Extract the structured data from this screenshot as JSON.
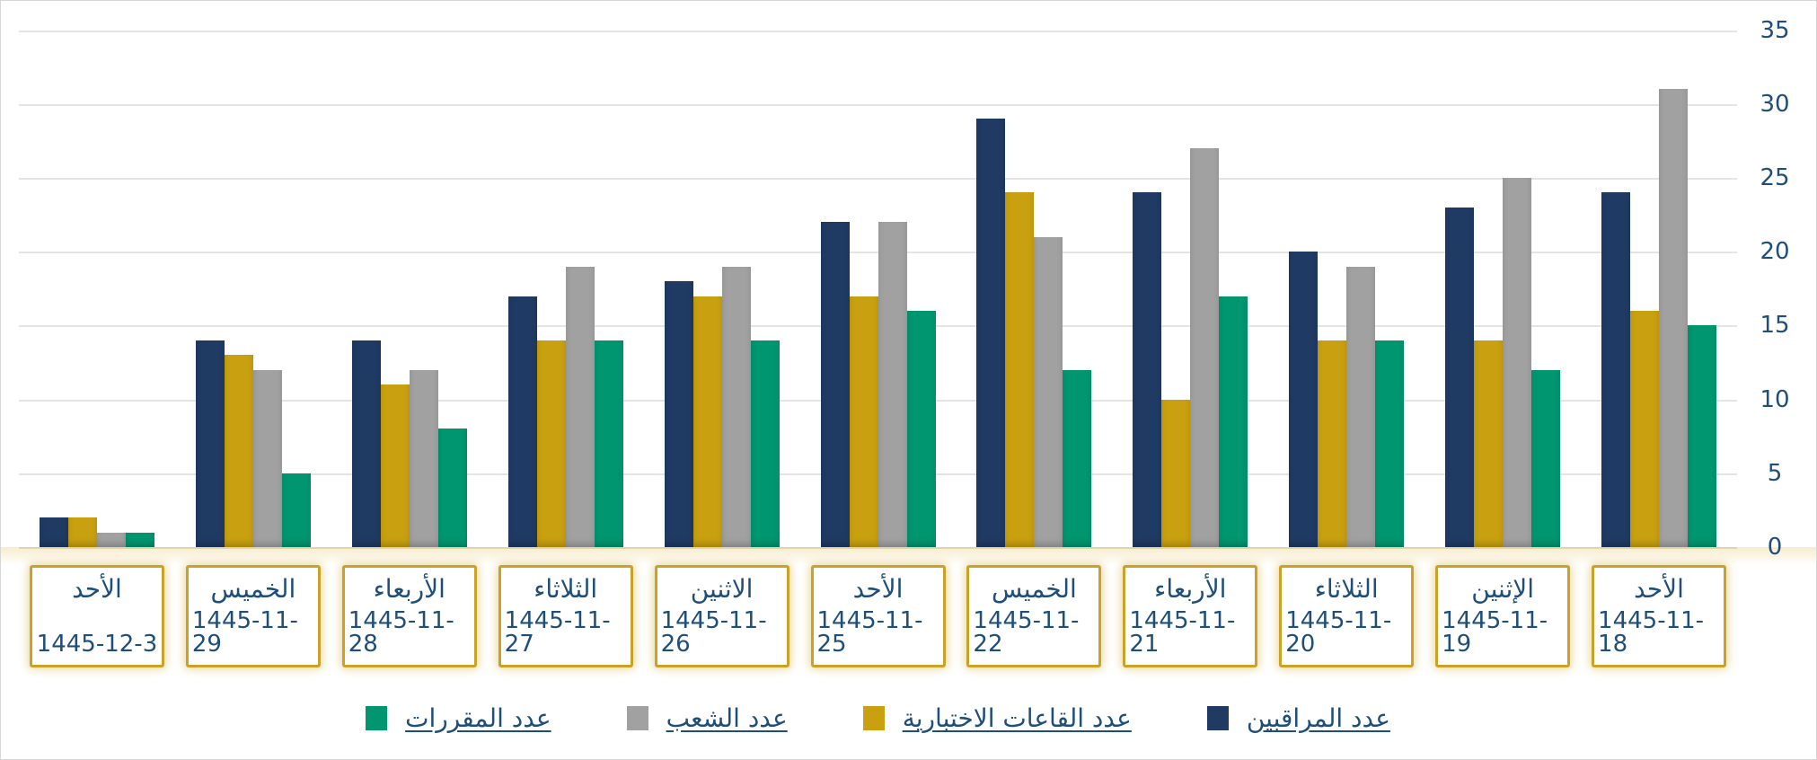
{
  "chart_data": {
    "type": "bar",
    "layout_direction": "rtl",
    "title": "",
    "grid": true,
    "y_axis": {
      "side": "right",
      "min": 0,
      "max": 35,
      "step": 5,
      "ticks": [
        0,
        5,
        10,
        15,
        20,
        25,
        30,
        35
      ],
      "tick_color": "#1f4e79"
    },
    "categories": [
      {
        "day": "الأحد",
        "date": "1445-12-3"
      },
      {
        "day": "الخميس",
        "date": "1445-11-29"
      },
      {
        "day": "الأربعاء",
        "date": "1445-11-28"
      },
      {
        "day": "الثلاثاء",
        "date": "1445-11-27"
      },
      {
        "day": "الاثنين",
        "date": "1445-11-26"
      },
      {
        "day": "الأحد",
        "date": "1445-11-25"
      },
      {
        "day": "الخميس",
        "date": "1445-11-22"
      },
      {
        "day": "الأربعاء",
        "date": "1445-11-21"
      },
      {
        "day": "الثلاثاء",
        "date": "1445-11-20"
      },
      {
        "day": "الإثنين",
        "date": "1445-11-19"
      },
      {
        "day": "الأحد",
        "date": "1445-11-18"
      }
    ],
    "series": [
      {
        "name": "عدد المراقبين",
        "color": "#1f3a63",
        "values": [
          2,
          14,
          14,
          17,
          18,
          22,
          29,
          24,
          20,
          23,
          24
        ]
      },
      {
        "name": "عدد القاعات الاختبارية",
        "color": "#c9a00f",
        "values": [
          2,
          13,
          11,
          14,
          17,
          17,
          24,
          10,
          14,
          14,
          16
        ]
      },
      {
        "name": "عدد الشعب",
        "color": "#a1a1a1",
        "values": [
          1,
          12,
          12,
          19,
          19,
          22,
          21,
          27,
          19,
          25,
          31
        ]
      },
      {
        "name": "عدد المقررات",
        "color": "#00966f",
        "values": [
          1,
          5,
          8,
          14,
          14,
          16,
          12,
          17,
          14,
          12,
          15
        ]
      }
    ],
    "legend": {
      "position": "bottom",
      "items_right_to_left": [
        "عدد المراقبين",
        "عدد القاعات الاختبارية",
        "عدد الشعب",
        "عدد المقررات"
      ]
    },
    "x_label_style": {
      "border_color": "#c9a227",
      "text_color": "#1f4e79"
    }
  }
}
